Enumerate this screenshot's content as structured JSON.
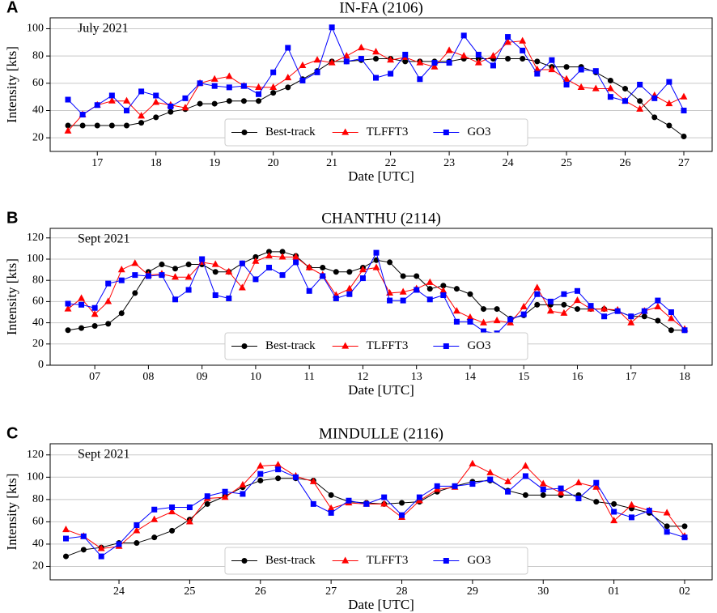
{
  "chart_data": [
    {
      "type": "line",
      "panel_label": "A",
      "title": "IN-FA (2106)",
      "annotation": "July 2021",
      "xlabel": "Date [UTC]",
      "ylabel": "Intensity [kts]",
      "categories": [
        null,
        null,
        "17",
        null,
        null,
        null,
        "18",
        null,
        null,
        null,
        "19",
        null,
        null,
        null,
        "20",
        null,
        null,
        null,
        "21",
        null,
        null,
        null,
        "22",
        null,
        null,
        null,
        "23",
        null,
        null,
        null,
        "24",
        null,
        null,
        null,
        "25",
        null,
        null,
        null,
        "26",
        null,
        null,
        null,
        "27"
      ],
      "series": [
        {
          "name": "Best-track",
          "color": "#000000",
          "marker": "o",
          "values": [
            29,
            29,
            29,
            29,
            29,
            31,
            35,
            39,
            41,
            45,
            45,
            47,
            47,
            47,
            53,
            57,
            63,
            69,
            76,
            76,
            77,
            78,
            78,
            76,
            76,
            76,
            76,
            78,
            78,
            78,
            78,
            78,
            76,
            72,
            72,
            72,
            68,
            62,
            56,
            47,
            35,
            29,
            21
          ]
        },
        {
          "name": "TLFFT3",
          "color": "#ff0000",
          "marker": "^",
          "values": [
            25,
            37,
            44,
            47,
            47,
            36,
            46,
            44,
            42,
            60,
            63,
            65,
            58,
            57,
            57,
            64,
            73,
            77,
            75,
            80,
            86,
            83,
            77,
            79,
            75,
            72,
            84,
            80,
            75,
            80,
            90,
            91,
            70,
            70,
            63,
            57,
            56,
            56,
            47,
            41,
            51,
            45,
            50
          ]
        },
        {
          "name": "GO3",
          "color": "#0000ff",
          "marker": "s",
          "values": [
            48,
            37,
            44,
            51,
            40,
            54,
            51,
            43,
            49,
            60,
            58,
            57,
            58,
            52,
            68,
            86,
            62,
            68,
            101,
            76,
            78,
            64,
            67,
            81,
            63,
            75,
            75,
            95,
            81,
            73,
            94,
            84,
            67,
            77,
            59,
            70,
            69,
            50,
            47,
            59,
            49,
            61,
            40
          ]
        }
      ],
      "ylim": [
        10,
        108
      ],
      "yticks": [
        20,
        40,
        60,
        80,
        100
      ],
      "grid": "y",
      "legend_loc": "lower center"
    },
    {
      "type": "line",
      "panel_label": "B",
      "title": "CHANTHU (2114)",
      "annotation": "Sept 2021",
      "xlabel": "Date [UTC]",
      "ylabel": "Intensity [kts]",
      "categories": [
        null,
        null,
        "07",
        null,
        null,
        null,
        "08",
        null,
        null,
        null,
        "09",
        null,
        null,
        null,
        "10",
        null,
        null,
        null,
        "11",
        null,
        null,
        null,
        "12",
        null,
        null,
        null,
        "13",
        null,
        null,
        null,
        "14",
        null,
        null,
        null,
        "15",
        null,
        null,
        null,
        "16",
        null,
        null,
        null,
        "17",
        null,
        null,
        null,
        "18"
      ],
      "series": [
        {
          "name": "Best-track",
          "color": "#000000",
          "marker": "o",
          "values": [
            33,
            35,
            37,
            39,
            49,
            68,
            88,
            95,
            91,
            95,
            95,
            88,
            88,
            96,
            102,
            107,
            107,
            103,
            92,
            92,
            88,
            88,
            92,
            99,
            97,
            84,
            84,
            72,
            75,
            72,
            67,
            53,
            53,
            44,
            47,
            57,
            57,
            57,
            53,
            53,
            53,
            51,
            46,
            46,
            42,
            33,
            33
          ]
        },
        {
          "name": "TLFFT3",
          "color": "#ff0000",
          "marker": "^",
          "values": [
            53,
            63,
            48,
            60,
            90,
            96,
            85,
            86,
            83,
            83,
            97,
            95,
            88,
            73,
            98,
            103,
            102,
            102,
            92,
            85,
            66,
            72,
            90,
            92,
            68,
            69,
            72,
            78,
            70,
            51,
            45,
            40,
            42,
            40,
            55,
            73,
            51,
            49,
            61,
            53,
            53,
            52,
            40,
            51,
            55,
            44,
            34
          ]
        },
        {
          "name": "GO3",
          "color": "#0000ff",
          "marker": "s",
          "values": [
            58,
            57,
            54,
            77,
            80,
            85,
            84,
            85,
            62,
            71,
            100,
            66,
            63,
            96,
            81,
            92,
            85,
            97,
            70,
            84,
            63,
            67,
            82,
            106,
            61,
            61,
            71,
            62,
            66,
            41,
            41,
            32,
            30,
            43,
            48,
            67,
            60,
            67,
            70,
            56,
            46,
            51,
            46,
            51,
            61,
            50,
            33
          ]
        }
      ],
      "ylim": [
        0,
        129
      ],
      "yticks": [
        0,
        20,
        40,
        60,
        80,
        100,
        120
      ],
      "grid": "y",
      "legend_loc": "lower center"
    },
    {
      "type": "line",
      "panel_label": "C",
      "title": "MINDULLE (2116)",
      "annotation": "Sept 2021",
      "xlabel": "Date [UTC]",
      "ylabel": "Intensity [kts]",
      "categories": [
        null,
        null,
        null,
        "24",
        null,
        null,
        null,
        "25",
        null,
        null,
        null,
        "26",
        null,
        null,
        null,
        "27",
        null,
        null,
        null,
        "28",
        null,
        null,
        null,
        "29",
        null,
        null,
        null,
        "30",
        null,
        null,
        null,
        "01",
        null,
        null,
        null,
        "02"
      ],
      "series": [
        {
          "name": "Best-track",
          "color": "#000000",
          "marker": "o",
          "values": [
            29,
            35,
            37,
            41,
            41,
            46,
            52,
            62,
            76,
            83,
            91,
            97,
            99,
            99,
            97,
            84,
            78,
            77,
            76,
            77,
            78,
            87,
            92,
            96,
            97,
            88,
            84,
            84,
            84,
            84,
            78,
            76,
            72,
            68,
            56,
            56
          ]
        },
        {
          "name": "TLFFT3",
          "color": "#ff0000",
          "marker": "^",
          "values": [
            53,
            47,
            36,
            38,
            52,
            62,
            69,
            60,
            81,
            82,
            93,
            110,
            111,
            101,
            96,
            72,
            77,
            76,
            76,
            64,
            79,
            89,
            91,
            112,
            104,
            96,
            110,
            94,
            86,
            95,
            91,
            61,
            75,
            70,
            68,
            47
          ]
        },
        {
          "name": "GO3",
          "color": "#0000ff",
          "marker": "s",
          "values": [
            45,
            47,
            29,
            40,
            57,
            71,
            73,
            73,
            83,
            87,
            85,
            103,
            107,
            100,
            76,
            68,
            79,
            76,
            82,
            66,
            82,
            92,
            92,
            94,
            98,
            87,
            101,
            89,
            90,
            81,
            95,
            69,
            64,
            70,
            51,
            46
          ]
        }
      ],
      "ylim": [
        8,
        130
      ],
      "yticks": [
        20,
        40,
        60,
        80,
        100,
        120
      ],
      "grid": "y",
      "legend_loc": "lower center"
    }
  ]
}
